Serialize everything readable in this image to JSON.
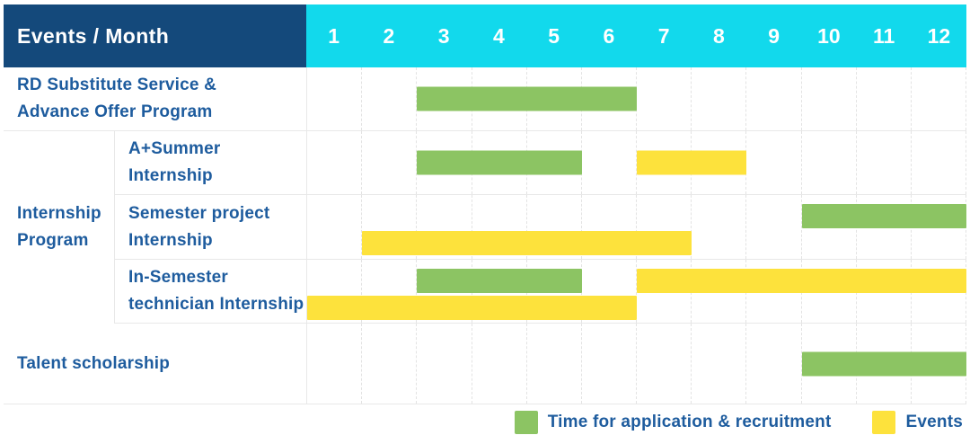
{
  "palette": {
    "navy": "#14497B",
    "cyan": "#12D9EC",
    "label_blue": "#1E5C9E",
    "green": "#8CC463",
    "yellow": "#FDE23C"
  },
  "header": {
    "title": "Events / Month",
    "months": [
      "1",
      "2",
      "3",
      "4",
      "5",
      "6",
      "7",
      "8",
      "9",
      "10",
      "11",
      "12"
    ]
  },
  "legend": [
    {
      "name": "recruitment",
      "label": "Time for application & recruitment",
      "color": "#8CC463"
    },
    {
      "name": "events",
      "label": "Events",
      "color": "#FDE23C"
    }
  ],
  "chart_data": {
    "type": "gantt",
    "title": "Events / Month",
    "x_axis": {
      "label": "Month",
      "ticks": [
        1,
        2,
        3,
        4,
        5,
        6,
        7,
        8,
        9,
        10,
        11,
        12
      ],
      "range": [
        1,
        12
      ]
    },
    "series": [
      {
        "name": "Time for application & recruitment",
        "color": "#8CC463"
      },
      {
        "name": "Events",
        "color": "#FDE23C"
      }
    ],
    "groups": [
      {
        "label": "Internship Program",
        "label_lines": [
          "Internship",
          "Program"
        ],
        "row_indexes": [
          1,
          2,
          3
        ]
      }
    ],
    "rows": [
      {
        "group": null,
        "label": "RD Substitute Service & Advance Offer Program",
        "label_lines": [
          "RD Substitute Service &",
          "Advance Offer Program"
        ],
        "bars": [
          {
            "series": "Time for application & recruitment",
            "start_month": 3,
            "end_month": 6,
            "lane": "single"
          }
        ]
      },
      {
        "group": "Internship Program",
        "label": "A+Summer Internship",
        "label_lines": [
          "A+Summer",
          "Internship"
        ],
        "bars": [
          {
            "series": "Time for application & recruitment",
            "start_month": 3,
            "end_month": 5,
            "lane": "single"
          },
          {
            "series": "Events",
            "start_month": 7,
            "end_month": 8,
            "lane": "single"
          }
        ]
      },
      {
        "group": "Internship Program",
        "label": "Semester project Internship",
        "label_lines": [
          "Semester project",
          "Internship"
        ],
        "bars": [
          {
            "series": "Time for application & recruitment",
            "start_month": 10,
            "end_month": 12,
            "lane": "top"
          },
          {
            "series": "Events",
            "start_month": 2,
            "end_month": 7,
            "lane": "bottom"
          }
        ]
      },
      {
        "group": "Internship Program",
        "label": "In-Semester technician Internship",
        "label_lines": [
          "In-Semester",
          "technician Internship"
        ],
        "bars": [
          {
            "series": "Time for application & recruitment",
            "start_month": 3,
            "end_month": 5,
            "lane": "top"
          },
          {
            "series": "Events",
            "start_month": 7,
            "end_month": 12,
            "lane": "top"
          },
          {
            "series": "Events",
            "start_month": 1,
            "end_month": 6,
            "lane": "bottom"
          }
        ]
      },
      {
        "group": null,
        "label": "Talent scholarship",
        "label_lines": [
          "Talent scholarship"
        ],
        "bars": [
          {
            "series": "Time for application & recruitment",
            "start_month": 10,
            "end_month": 12,
            "lane": "single"
          }
        ]
      }
    ]
  }
}
